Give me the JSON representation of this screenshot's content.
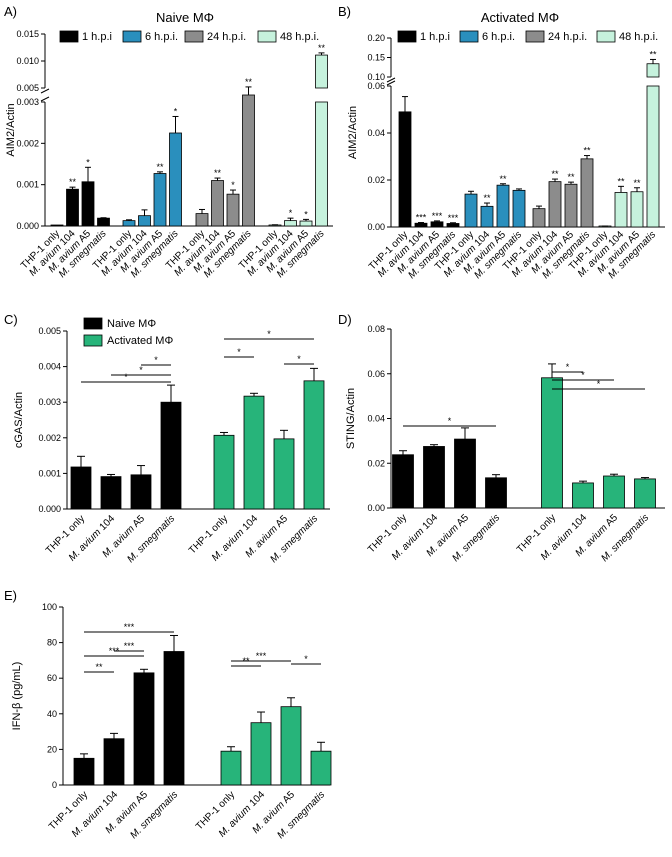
{
  "colors": {
    "black": "#000000",
    "blue": "#2a8fbd",
    "gray": "#8c8c8c",
    "mint": "#c6f2dd",
    "green": "#27b47a"
  },
  "chart_data": [
    {
      "panel": "A)",
      "type": "bar",
      "title": "Naive MΦ",
      "ylabel": "AIM2/Actin",
      "legend": [
        "1 h.p.i",
        "6 h.p.i.",
        "24 h.p.i.",
        "48 h.p.i."
      ],
      "categories": [
        "THP-1 only",
        "M. avium 104",
        "M. avium A5",
        "M. smegmatis"
      ],
      "lower_ticks": [
        "0.000",
        "0.001",
        "0.002",
        "0.003"
      ],
      "upper_ticks": [
        "0.005",
        "0.010",
        "0.015"
      ],
      "series": [
        {
          "name": "1 h.p.i",
          "color": "black",
          "values": [
            0.0,
            0.00089,
            0.00107,
            0.00019
          ],
          "errors": [
            0,
            5e-05,
            0.00035,
            1e-05
          ],
          "stars": [
            "",
            "**",
            "*",
            ""
          ]
        },
        {
          "name": "6 h.p.i.",
          "color": "blue",
          "values": [
            0.00013,
            0.00025,
            0.00127,
            0.00225
          ],
          "errors": [
            2e-05,
            0.00014,
            4e-05,
            0.0004
          ],
          "stars": [
            "",
            "",
            "**",
            "*"
          ]
        },
        {
          "name": "24 h.p.i.",
          "color": "gray",
          "values": [
            0.0003,
            0.0011,
            0.00077,
            0.0045
          ],
          "errors": [
            0.0001,
            6e-05,
            0.0001,
            0.0007
          ],
          "stars": [
            "",
            "**",
            "*",
            "**"
          ]
        },
        {
          "name": "48 h.p.i.",
          "color": "mint",
          "values": [
            2e-05,
            0.00013,
            0.00012,
            0.0111
          ],
          "errors": [
            1e-05,
            6e-05,
            4e-05,
            0.0004
          ],
          "stars": [
            "",
            "*",
            "*",
            "**"
          ]
        }
      ]
    },
    {
      "panel": "B)",
      "type": "bar",
      "title": "Activated MΦ",
      "ylabel": "AIM2/Actin",
      "legend": [
        "1 h.p.i",
        "6 h.p.i.",
        "24 h.p.i.",
        "48 h.p.i."
      ],
      "categories": [
        "THP-1 only",
        "M. avium 104",
        "M. avium A5",
        "M. smegmatis"
      ],
      "lower_ticks": [
        "0.00",
        "0.02",
        "0.04",
        "0.06"
      ],
      "upper_ticks": [
        "0.10",
        "0.15",
        "0.20"
      ],
      "series": [
        {
          "name": "1 h.p.i",
          "color": "black",
          "values": [
            0.049,
            0.0016,
            0.0022,
            0.0015
          ],
          "errors": [
            0.0065,
            0.0003,
            0.0004,
            0.0003
          ],
          "stars": [
            "",
            "***",
            "***",
            "***"
          ]
        },
        {
          "name": "6 h.p.i.",
          "color": "blue",
          "values": [
            0.014,
            0.0088,
            0.0178,
            0.0156
          ],
          "errors": [
            0.0012,
            0.0014,
            0.0006,
            0.0006
          ],
          "stars": [
            "",
            "**",
            "**",
            ""
          ]
        },
        {
          "name": "24 h.p.i.",
          "color": "gray",
          "values": [
            0.0078,
            0.0193,
            0.0182,
            0.029
          ],
          "errors": [
            0.0011,
            0.0011,
            0.0009,
            0.0014
          ],
          "stars": [
            "",
            "**",
            "**",
            "**"
          ]
        },
        {
          "name": "48 h.p.i.",
          "color": "mint",
          "values": [
            0.0003,
            0.0147,
            0.015,
            0.134
          ],
          "errors": [
            0.0001,
            0.0026,
            0.0017,
            0.011
          ],
          "stars": [
            "",
            "**",
            "**",
            "**"
          ]
        }
      ]
    },
    {
      "panel": "C)",
      "type": "bar",
      "ylabel": "cGAS/Actin",
      "ylim": [
        0,
        0.005
      ],
      "yticks": [
        "0.000",
        "0.001",
        "0.002",
        "0.003",
        "0.004",
        "0.005"
      ],
      "legend": [
        "Naive MΦ",
        "Activated MΦ"
      ],
      "categories": [
        "THP-1 only",
        "M. avium 104",
        "M. avium A5",
        "M. smegmatis",
        "THP-1 only",
        "M. avium 104",
        "M. avium A5",
        "M. smegmatis"
      ],
      "values": [
        0.00118,
        0.00091,
        0.00096,
        0.003,
        0.00207,
        0.00317,
        0.00197,
        0.0036
      ],
      "errors": [
        0.0003,
        6e-05,
        0.00026,
        0.00048,
        8e-05,
        8e-05,
        0.00024,
        0.00035
      ],
      "brackets": [
        {
          "from": 0,
          "to": 3,
          "star": "*"
        },
        {
          "from": 1,
          "to": 3,
          "star": "*"
        },
        {
          "from": 2,
          "to": 3,
          "star": "*"
        },
        {
          "from": 4,
          "to": 5,
          "star": "*"
        },
        {
          "from": 4,
          "to": 7,
          "star": "*"
        },
        {
          "from": 6,
          "to": 7,
          "star": "*"
        }
      ]
    },
    {
      "panel": "D)",
      "type": "bar",
      "ylabel": "STING/Actin",
      "ylim": [
        0,
        0.08
      ],
      "yticks": [
        "0.00",
        "0.02",
        "0.04",
        "0.06",
        "0.08"
      ],
      "categories": [
        "THP-1 only",
        "M. avium 104",
        "M. avium A5",
        "M. smegmatis",
        "THP-1 only",
        "M. avium 104",
        "M. avium A5",
        "M. smegmatis"
      ],
      "values": [
        0.0238,
        0.0275,
        0.0308,
        0.0135,
        0.0582,
        0.0112,
        0.0143,
        0.013
      ],
      "errors": [
        0.0018,
        0.0008,
        0.005,
        0.0014,
        0.0062,
        0.0008,
        0.0008,
        0.0006
      ],
      "brackets": [
        {
          "from": 0,
          "to": 3,
          "star": "*"
        },
        {
          "from": 4,
          "to": 5,
          "star": "*"
        },
        {
          "from": 4,
          "to": 6,
          "star": "*"
        },
        {
          "from": 4,
          "to": 7,
          "star": "*"
        }
      ]
    },
    {
      "panel": "E)",
      "type": "bar",
      "ylabel": "IFN-β (pg/mL)",
      "ylim": [
        0,
        100
      ],
      "yticks": [
        "0",
        "20",
        "40",
        "60",
        "80",
        "100"
      ],
      "categories": [
        "THP-1 only",
        "M. avium 104",
        "M. avium A5",
        "M. smegmatis",
        "THP-1 only",
        "M. avium 104",
        "M. avium A5",
        "M. smegmatis"
      ],
      "values": [
        15,
        26,
        63,
        75,
        19,
        35,
        44,
        19
      ],
      "errors": [
        2.5,
        3,
        2,
        9,
        2.5,
        6,
        5,
        5
      ],
      "brackets": [
        {
          "from": 0,
          "to": 1,
          "star": "**"
        },
        {
          "from": 0,
          "to": 2,
          "star": "***"
        },
        {
          "from": 1,
          "to": 2,
          "star": "***"
        },
        {
          "from": 0,
          "to": 3,
          "star": "***"
        },
        {
          "from": 4,
          "to": 5,
          "star": "**"
        },
        {
          "from": 4,
          "to": 6,
          "star": "***"
        },
        {
          "from": 6,
          "to": 7,
          "star": "*"
        }
      ]
    }
  ]
}
